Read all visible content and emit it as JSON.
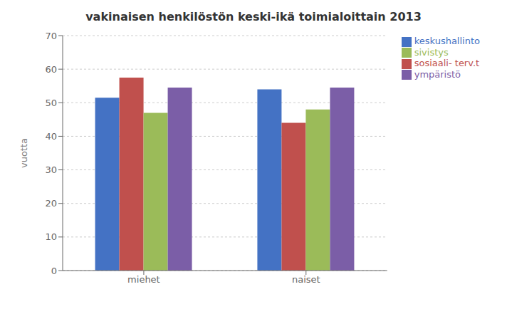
{
  "chart_data": {
    "type": "bar",
    "title": "vakinaisen henkilöstön keski-ikä toimialoittain 2013",
    "ylabel": "vuotta",
    "categories": [
      "miehet",
      "naiset"
    ],
    "series": [
      {
        "name": "keskushallinto",
        "color": "#4472C4",
        "values": [
          51.5,
          54.0
        ]
      },
      {
        "name": "sosiaali- terv.t",
        "color": "#C0504D",
        "values": [
          57.5,
          44.0
        ]
      },
      {
        "name": "sivistys",
        "color": "#9BBB59",
        "values": [
          47.0,
          48.0
        ]
      },
      {
        "name": "ympäristö",
        "color": "#7B5EA7",
        "values": [
          54.5,
          54.5
        ]
      }
    ],
    "ylim": [
      0,
      70
    ],
    "yticks": [
      0,
      10,
      20,
      30,
      40,
      50,
      60,
      70
    ],
    "grid": true,
    "legend": "right"
  }
}
